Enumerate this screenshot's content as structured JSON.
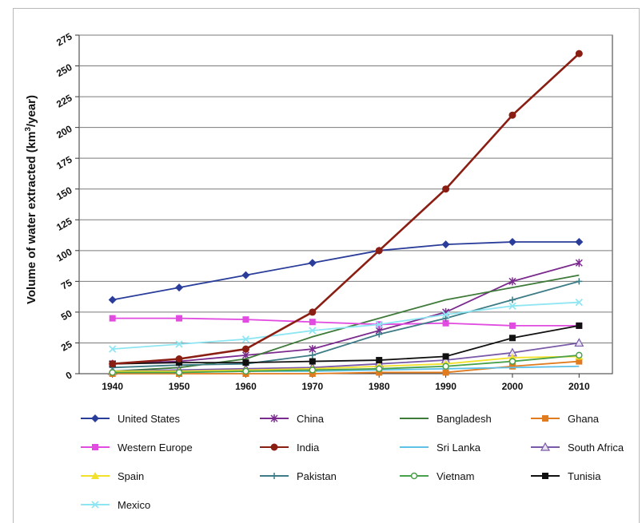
{
  "chart_data": {
    "type": "line",
    "ylabel_main": "Volume of water extracted (km",
    "ylabel_sup": "3",
    "ylabel_end": "/year)",
    "x": [
      1940,
      1950,
      1960,
      1970,
      1980,
      1990,
      2000,
      2010
    ],
    "xlim": [
      1935,
      2015
    ],
    "ylim": [
      0,
      275
    ],
    "yticks": [
      0,
      25,
      50,
      75,
      100,
      125,
      150,
      175,
      200,
      225,
      250,
      275
    ],
    "legend_position": "bottom",
    "series": [
      {
        "name": "United States",
        "color": "#2a3d9a",
        "marker": "diamond",
        "values": [
          60,
          70,
          80,
          90,
          100,
          105,
          107,
          107
        ]
      },
      {
        "name": "China",
        "color": "#7b2a8e",
        "marker": "star",
        "values": [
          8,
          10,
          15,
          20,
          35,
          50,
          75,
          90
        ]
      },
      {
        "name": "Bangladesh",
        "color": "#3e7a39",
        "marker": "none",
        "values": [
          2,
          5,
          12,
          30,
          45,
          60,
          70,
          80
        ]
      },
      {
        "name": "Ghana",
        "color": "#e07b1f",
        "marker": "square",
        "values": [
          0,
          0,
          0,
          0,
          1,
          1,
          6,
          10
        ]
      },
      {
        "name": "Western Europe",
        "color": "#e14be0",
        "marker": "square",
        "values": [
          45,
          45,
          44,
          42,
          40,
          41,
          39,
          39
        ]
      },
      {
        "name": "India",
        "color": "#8b1e12",
        "marker": "circle",
        "values": [
          8,
          12,
          20,
          50,
          100,
          150,
          210,
          260
        ]
      },
      {
        "name": "Sri Lanka",
        "color": "#5fc1e8",
        "marker": "none",
        "values": [
          1,
          1,
          2,
          2,
          3,
          4,
          5,
          6
        ]
      },
      {
        "name": "South Africa",
        "color": "#7a5aa8",
        "marker": "triangle-open",
        "values": [
          2,
          3,
          4,
          5,
          8,
          11,
          17,
          25
        ]
      },
      {
        "name": "Spain",
        "color": "#f2e12a",
        "marker": "triangle",
        "values": [
          2,
          2,
          3,
          4,
          6,
          8,
          13,
          14
        ]
      },
      {
        "name": "Pakistan",
        "color": "#3d7c86",
        "marker": "plus",
        "values": [
          5,
          7,
          8,
          15,
          32,
          45,
          60,
          75
        ]
      },
      {
        "name": "Vietnam",
        "color": "#49a04a",
        "marker": "circle-open",
        "values": [
          1,
          1,
          2,
          3,
          4,
          6,
          10,
          15
        ]
      },
      {
        "name": "Tunisia",
        "color": "#111111",
        "marker": "square",
        "values": [
          8,
          9,
          9,
          10,
          11,
          14,
          29,
          39
        ]
      },
      {
        "name": "Mexico",
        "color": "#8fe6f3",
        "marker": "x",
        "values": [
          20,
          24,
          28,
          35,
          40,
          48,
          55,
          58
        ]
      }
    ]
  }
}
